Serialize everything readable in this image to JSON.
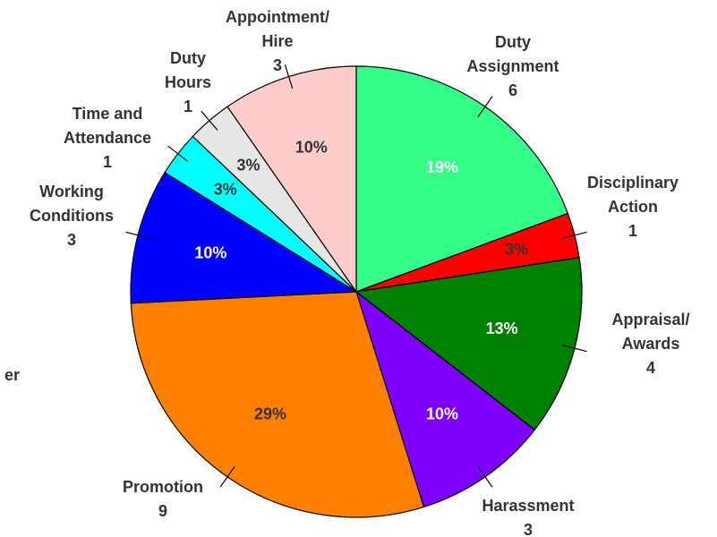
{
  "chart_data": {
    "type": "pie",
    "categories": [
      "Duty\nAssignment",
      "Disciplinary\nAction",
      "Appraisal/\nAwards",
      "Harassment",
      "Promotion",
      "Working\nConditions",
      "Time and\nAttendance",
      "Duty\nHours",
      "Appointment/\nHire"
    ],
    "values": [
      6,
      1,
      4,
      3,
      9,
      3,
      1,
      1,
      3
    ],
    "value_labels": [
      "19%",
      "3%",
      "13%",
      "10%",
      "29%",
      "10%",
      "3%",
      "3%",
      "10%"
    ],
    "colors": [
      "#33ff88",
      "#ff0000",
      "#008000",
      "#8000ff",
      "#ff8000",
      "#0000ff",
      "#00ffff",
      "#e6e6e6",
      "#ffcccc"
    ],
    "value_label_colors": [
      "#ffffff",
      "#333333",
      "#ffffff",
      "#ffffff",
      "#333333",
      "#ffffff",
      "#333333",
      "#333333",
      "#333333"
    ],
    "annotations": [
      "er"
    ]
  }
}
